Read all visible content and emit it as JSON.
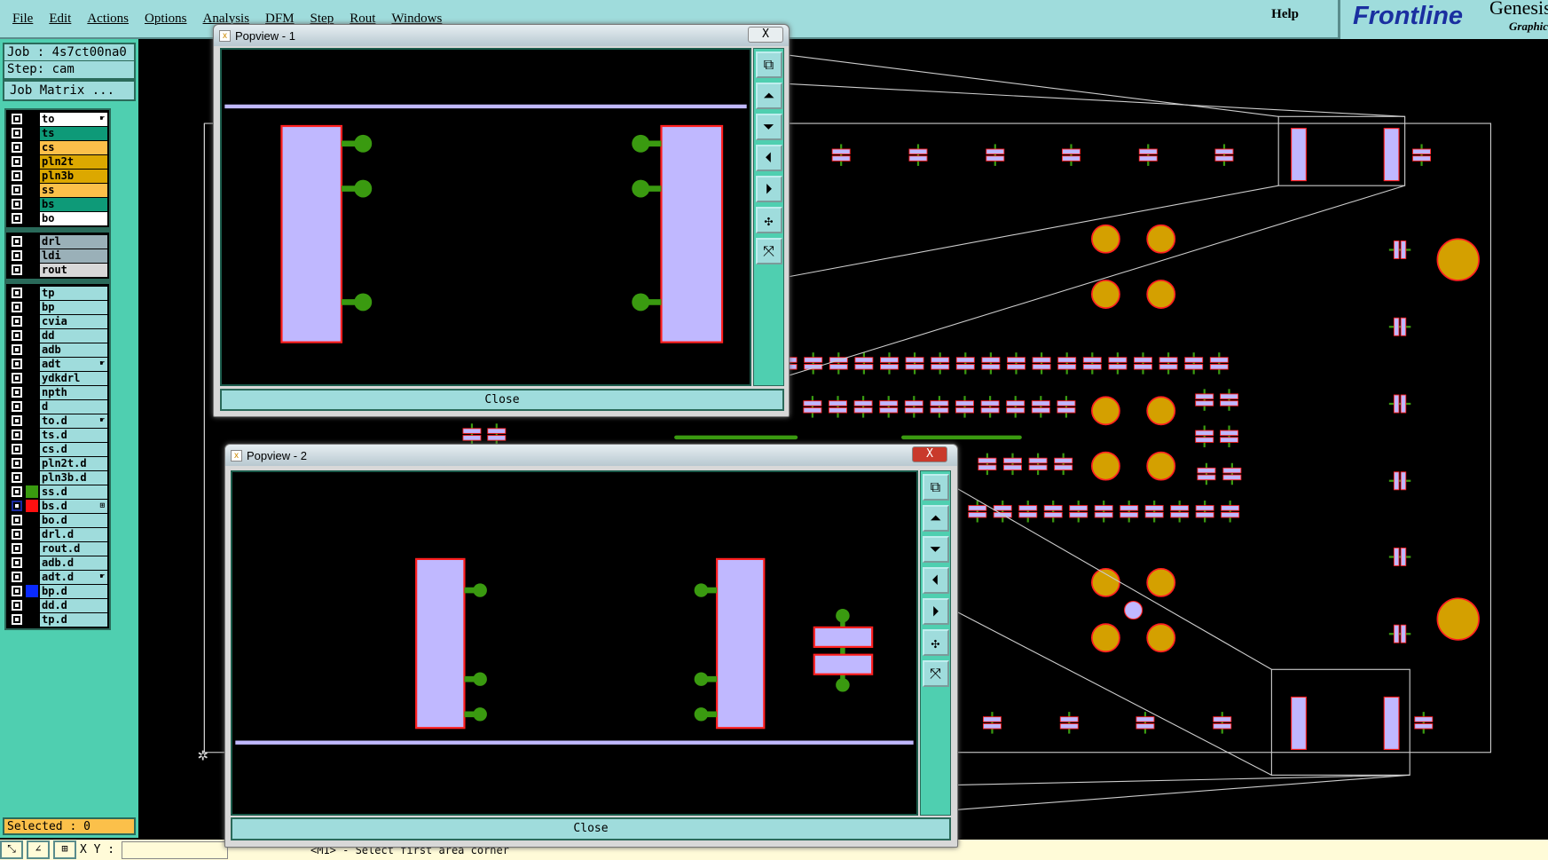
{
  "menu": {
    "items": [
      "File",
      "Edit",
      "Actions",
      "Options",
      "Analysis",
      "DFM",
      "Step",
      "Rout",
      "Windows"
    ],
    "help": "Help"
  },
  "logo": {
    "brand": "Frontline",
    "product": "Genesis",
    "subtitle": "Graphic"
  },
  "job": {
    "job_label": "Job : 4s7ct00na0",
    "step_label": "Step: cam",
    "matrix_button": "Job Matrix ..."
  },
  "layers": {
    "groups": [
      [
        {
          "name": "to",
          "color": "#ffffff",
          "mark": "hand"
        },
        {
          "name": "ts",
          "color": "#0e9a78"
        },
        {
          "name": "cs",
          "color": "#fbc04a"
        },
        {
          "name": "pln2t",
          "color": "#dca800"
        },
        {
          "name": "pln3b",
          "color": "#dca800"
        },
        {
          "name": "ss",
          "color": "#fbc04a"
        },
        {
          "name": "bs",
          "color": "#0e9a78"
        },
        {
          "name": "bo",
          "color": "#ffffff"
        }
      ],
      [
        {
          "name": "drl",
          "color": "#9ab0b8"
        },
        {
          "name": "ldi",
          "color": "#9ab0b8"
        },
        {
          "name": "rout",
          "color": "#d8d8d8"
        }
      ],
      [
        {
          "name": "tp"
        },
        {
          "name": "bp"
        },
        {
          "name": "cvia"
        },
        {
          "name": "dd"
        },
        {
          "name": "adb"
        },
        {
          "name": "adt",
          "mark": "hand"
        },
        {
          "name": "ydkdrl"
        },
        {
          "name": "npth"
        },
        {
          "name": "d"
        },
        {
          "name": "to.d",
          "mark": "hand"
        },
        {
          "name": "ts.d"
        },
        {
          "name": "cs.d"
        },
        {
          "name": "pln2t.d"
        },
        {
          "name": "pln3b.d"
        },
        {
          "name": "ss.d",
          "swatch": "#3a9a10"
        },
        {
          "name": "bs.d",
          "swatch": "#ff1010",
          "mark": "grid",
          "active": true
        },
        {
          "name": "bo.d"
        },
        {
          "name": "drl.d"
        },
        {
          "name": "rout.d"
        },
        {
          "name": "adb.d"
        },
        {
          "name": "adt.d",
          "mark": "hand"
        },
        {
          "name": "bp.d",
          "swatch": "#0a2aff"
        },
        {
          "name": "dd.d"
        },
        {
          "name": "tp.d"
        }
      ]
    ],
    "default_color": "#9fdcdc"
  },
  "status": {
    "selected": "Selected : 0",
    "xy_label": "X Y :",
    "xy_value": "",
    "message": "<M1> - Select first area corner"
  },
  "popview1": {
    "title": "Popview - 1",
    "close_label": "Close",
    "close_x": "X"
  },
  "popview2": {
    "title": "Popview - 2",
    "close_label": "Close",
    "close_x": "X"
  },
  "toolbar_icons": [
    "view-previous-icon",
    "pan-up-icon",
    "pan-down-icon",
    "pan-left-icon",
    "pan-right-icon",
    "zoom-in-icon",
    "zoom-out-icon"
  ],
  "colors": {
    "pad": "#c0b8ff",
    "pad_outline": "#ff2020",
    "trace": "#3a9a10",
    "via": "#d4a000",
    "outline": "#cccccc",
    "ui": "#9fdcdc",
    "panel": "#4fcfb0"
  }
}
